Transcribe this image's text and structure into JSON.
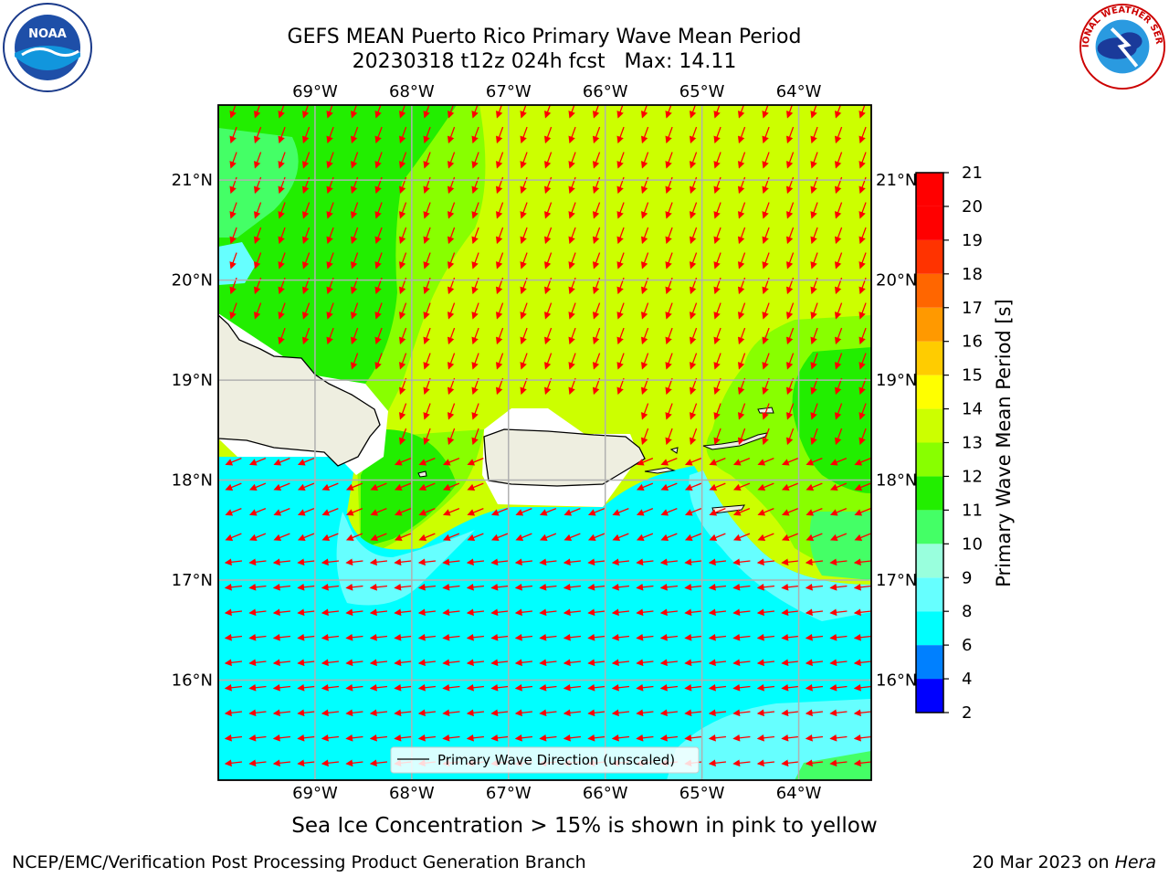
{
  "title": {
    "line1": "GEFS MEAN Puerto Rico Primary Wave Mean Period",
    "line2": "20230318 t12z 024h fcst   Max: 14.11"
  },
  "logos": {
    "left": {
      "icon": "noaa-logo",
      "text": "NOAA"
    },
    "right": {
      "icon": "nws-logo",
      "text": "NATIONAL WEATHER SERVICE"
    }
  },
  "map": {
    "lon_labels": [
      "69°W",
      "68°W",
      "67°W",
      "66°W",
      "65°W",
      "64°W"
    ],
    "lat_labels": [
      "21°N",
      "20°N",
      "19°N",
      "18°N",
      "17°N",
      "16°N"
    ],
    "lon_range": [
      -70.0,
      -63.25
    ],
    "lat_range": [
      15.0,
      21.75
    ],
    "legend_label": "Primary Wave Direction (unscaled)",
    "arrow_color": "#ff0000",
    "land_color": "#eeeee0"
  },
  "colorbar": {
    "label": "Primary Wave Mean Period [s]",
    "ticks": [
      "2",
      "4",
      "6",
      "8",
      "9",
      "10",
      "11",
      "12",
      "13",
      "14",
      "15",
      "16",
      "17",
      "18",
      "19",
      "20",
      "21"
    ],
    "colors": [
      "#0000ff",
      "#0080ff",
      "#00ffff",
      "#66ffff",
      "#99ffdd",
      "#44ff66",
      "#22ee00",
      "#88ff00",
      "#ccff00",
      "#ffff00",
      "#ffcc00",
      "#ff9900",
      "#ff6600",
      "#ff3300",
      "#ff0000"
    ]
  },
  "note": "Sea Ice Concentration > 15% is shown in pink to yellow",
  "footer": {
    "left": "NCEP/EMC/Verification Post Processing Product Generation Branch",
    "date": "20 Mar 2023 on",
    "host": "Hera"
  }
}
